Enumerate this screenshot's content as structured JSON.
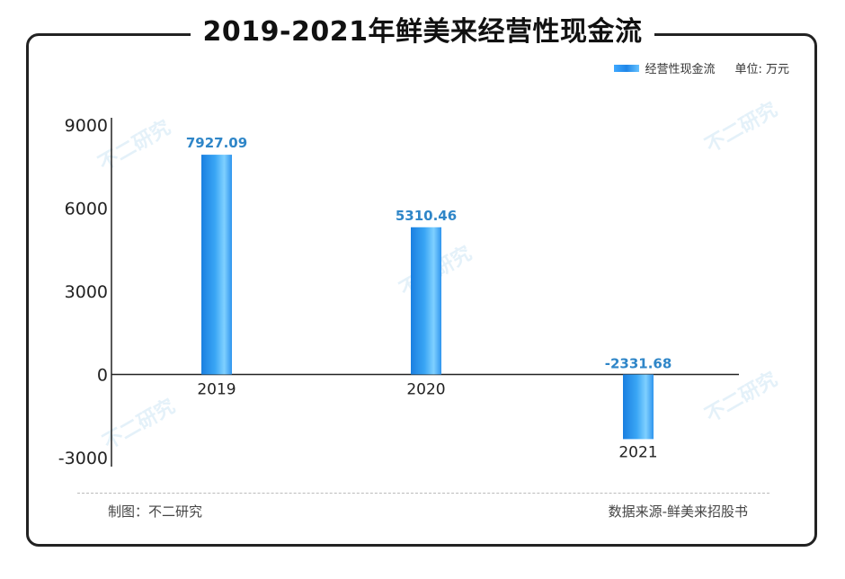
{
  "title": "2019-2021年鲜美来经营性现金流",
  "legend": {
    "series_label": "经营性现金流",
    "unit": "单位: 万元"
  },
  "footer": {
    "left": "制图：不二研究",
    "right": "数据来源-鲜美来招股书"
  },
  "watermark": "不二研究",
  "colors": {
    "bar_dark": "#1f86e8",
    "bar_light": "#66c2ff",
    "label": "#2f86c8",
    "axis": "#222222",
    "text": "#222222"
  },
  "chart_data": {
    "type": "bar",
    "categories": [
      "2019",
      "2020",
      "2021"
    ],
    "series": [
      {
        "name": "经营性现金流",
        "values": [
          7927.09,
          5310.46,
          -2331.68
        ]
      }
    ],
    "data_labels": [
      "7927.09",
      "5310.46",
      "-2331.68"
    ],
    "y_ticks": [
      9000,
      6000,
      3000,
      0,
      -3000
    ],
    "ylim": [
      -3000,
      9000
    ],
    "grid": false,
    "legend_position": "top-right"
  }
}
